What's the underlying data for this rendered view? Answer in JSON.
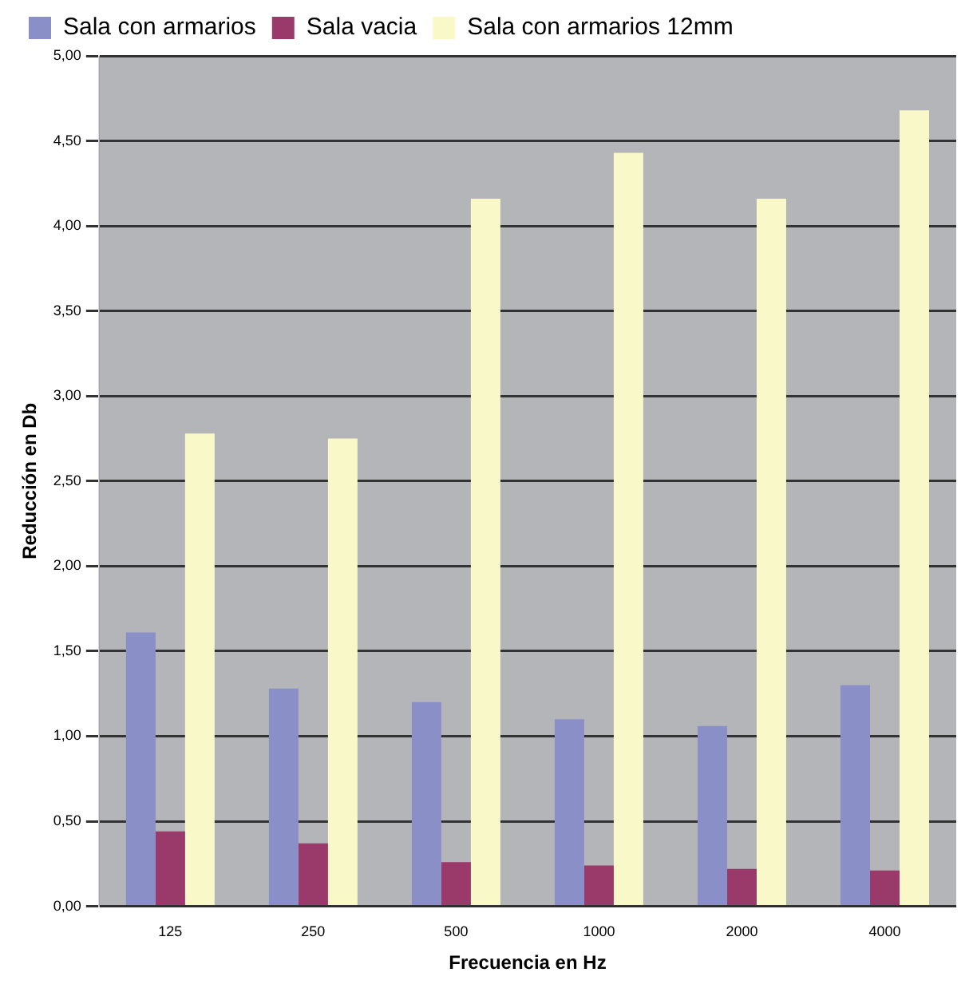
{
  "chart_data": {
    "type": "bar",
    "xlabel": "Frecuencia en Hz",
    "ylabel": "Reducción en Db",
    "categories": [
      "125",
      "250",
      "500",
      "1000",
      "2000",
      "4000"
    ],
    "series": [
      {
        "name": "Sala con armarios",
        "color": "#8b8fc8",
        "values": [
          1.61,
          1.28,
          1.2,
          1.1,
          1.06,
          1.3
        ]
      },
      {
        "name": "Sala vacia",
        "color": "#9a3a6a",
        "values": [
          0.44,
          0.37,
          0.26,
          0.24,
          0.22,
          0.21
        ]
      },
      {
        "name": "Sala con armarios 12mm",
        "color": "#f8f8c8",
        "values": [
          2.78,
          2.75,
          4.16,
          4.43,
          4.16,
          4.68
        ]
      }
    ],
    "ylim": [
      0,
      5
    ],
    "yticks": [
      {
        "value": 0,
        "label": "0,00"
      },
      {
        "value": 0.5,
        "label": "0,50"
      },
      {
        "value": 1,
        "label": "1,00"
      },
      {
        "value": 1.5,
        "label": "1,50"
      },
      {
        "value": 2,
        "label": "2,00"
      },
      {
        "value": 2.5,
        "label": "2,50"
      },
      {
        "value": 3,
        "label": "3,00"
      },
      {
        "value": 3.5,
        "label": "3,50"
      },
      {
        "value": 4,
        "label": "4,00"
      },
      {
        "value": 4.5,
        "label": "4,50"
      },
      {
        "value": 5,
        "label": "5,00"
      }
    ],
    "grid": "y",
    "legend": "top left"
  }
}
